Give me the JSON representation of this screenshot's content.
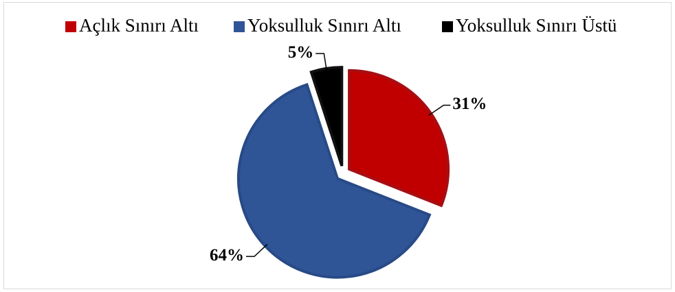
{
  "chart_data": {
    "type": "pie",
    "categories": [
      "Açlık Sınırı Altı",
      "Yoksulluk Sınırı Altı",
      "Yoksulluk Sınırı Üstü"
    ],
    "values": [
      31,
      64,
      5
    ],
    "value_labels": [
      "31%",
      "64%",
      "5%"
    ],
    "colors": [
      "#c00000",
      "#2f5597",
      "#000000"
    ],
    "stroke_colors": [
      "#a50f15",
      "#284a86",
      "#111111"
    ],
    "legend": "top"
  }
}
